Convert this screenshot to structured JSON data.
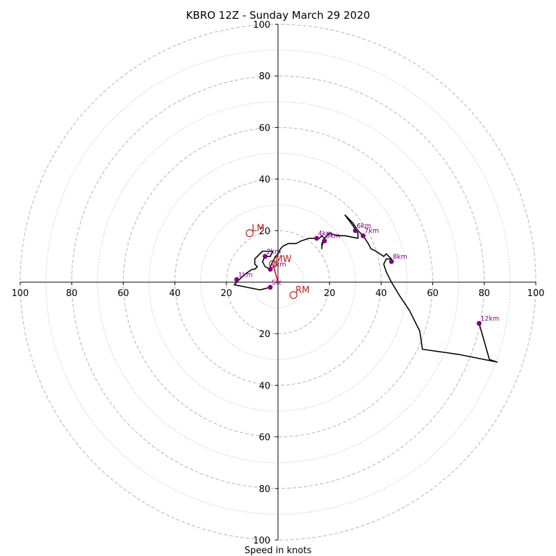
{
  "chart_data": {
    "type": "scatter",
    "title": "KBRO 12Z - Sunday March 29 2020",
    "xlabel": "Speed in knots",
    "ylabel": "",
    "xlim": [
      -100,
      100
    ],
    "ylim": [
      -100,
      100
    ],
    "ring_major": [
      20,
      40,
      60,
      80,
      100
    ],
    "ring_minor": [
      10,
      30,
      50,
      70,
      90
    ],
    "x_tick_labels": [
      "100",
      "80",
      "60",
      "40",
      "20",
      "20",
      "40",
      "60",
      "80",
      "100"
    ],
    "x_tick_values": [
      -100,
      -80,
      -60,
      -40,
      -20,
      20,
      40,
      60,
      80,
      100
    ],
    "y_tick_labels": [
      "100",
      "80",
      "60",
      "40",
      "20",
      "20",
      "40",
      "60",
      "80",
      "100"
    ],
    "y_tick_values": [
      100,
      80,
      60,
      40,
      20,
      -20,
      -40,
      -60,
      -80,
      -100
    ],
    "hodograph": [
      [
        -3,
        -2
      ],
      [
        -7,
        -3
      ],
      [
        -12,
        -2
      ],
      [
        -17,
        -1
      ],
      [
        -15,
        1
      ],
      [
        -13,
        3
      ],
      [
        -10,
        5
      ],
      [
        -9,
        5
      ],
      [
        -8,
        6
      ],
      [
        -9,
        7
      ],
      [
        -9,
        9
      ],
      [
        -6,
        12
      ],
      [
        -2,
        12
      ],
      [
        -3,
        10
      ],
      [
        -5,
        10
      ],
      [
        -6,
        8
      ],
      [
        -5,
        6
      ],
      [
        -3,
        5
      ],
      [
        -3,
        6
      ],
      [
        -2,
        8
      ],
      [
        -1,
        10
      ],
      [
        0,
        11
      ],
      [
        1,
        13
      ],
      [
        2,
        14
      ],
      [
        4,
        15
      ],
      [
        7,
        15
      ],
      [
        9,
        16
      ],
      [
        12,
        17
      ],
      [
        14,
        17
      ],
      [
        16,
        17
      ],
      [
        17,
        18
      ],
      [
        18,
        17
      ],
      [
        17,
        14
      ],
      [
        17,
        13
      ],
      [
        17,
        15
      ],
      [
        18,
        17
      ],
      [
        20,
        19
      ],
      [
        23,
        18
      ],
      [
        26,
        18
      ],
      [
        31,
        17
      ],
      [
        31,
        19
      ],
      [
        29,
        22
      ],
      [
        26,
        26
      ],
      [
        29,
        23
      ],
      [
        31,
        20
      ],
      [
        33,
        18
      ],
      [
        35,
        15
      ],
      [
        36,
        13
      ],
      [
        38,
        12
      ],
      [
        41,
        10
      ],
      [
        42,
        11
      ],
      [
        44,
        9
      ],
      [
        42,
        9
      ],
      [
        41,
        7
      ],
      [
        42,
        4
      ],
      [
        44,
        0
      ],
      [
        47,
        -5
      ],
      [
        51,
        -11
      ],
      [
        55,
        -19
      ],
      [
        56,
        -26
      ],
      [
        70,
        -28
      ],
      [
        85,
        -31
      ],
      [
        82,
        -30
      ],
      [
        78,
        -16
      ]
    ],
    "height_markers": [
      {
        "label": "Sfc",
        "x": -3,
        "y": -2
      },
      {
        "label": "1km",
        "x": -16,
        "y": 1
      },
      {
        "label": "2km",
        "x": -5,
        "y": 10
      },
      {
        "label": "3km",
        "x": -3,
        "y": 5
      },
      {
        "label": "4km",
        "x": 15,
        "y": 17
      },
      {
        "label": "5km",
        "x": 18,
        "y": 16
      },
      {
        "label": "6km",
        "x": 30,
        "y": 20
      },
      {
        "label": "7km",
        "x": 33,
        "y": 18
      },
      {
        "label": "8km",
        "x": 44,
        "y": 8
      },
      {
        "label": "12km",
        "x": 78,
        "y": -16
      }
    ],
    "storm_motion": [
      {
        "label": "LM",
        "x": -11,
        "y": 19
      },
      {
        "label": "MW",
        "x": -2,
        "y": 7
      },
      {
        "label": "RM",
        "x": 6,
        "y": -5
      }
    ],
    "storm_motion_segment": [
      [
        -2,
        7
      ],
      [
        0,
        0
      ]
    ],
    "colors": {
      "hodograph": "#000000",
      "marker": "#800080",
      "storm_motion": "#b22222",
      "segment": "#ff0000",
      "grid": "#bfbfbf"
    },
    "grid": true
  }
}
